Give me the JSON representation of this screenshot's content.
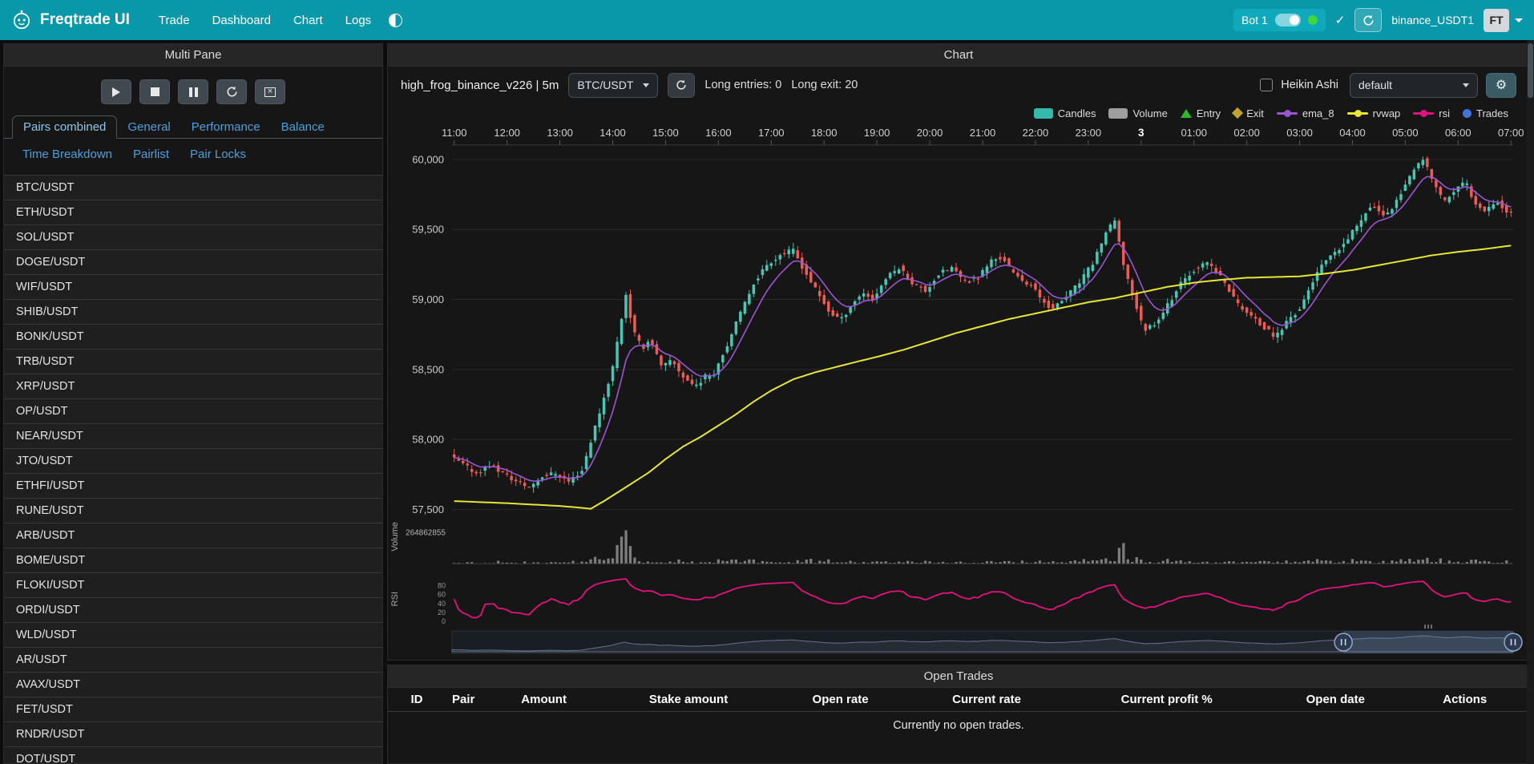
{
  "navbar": {
    "brand": "Freqtrade UI",
    "items": [
      {
        "label": "Trade"
      },
      {
        "label": "Dashboard"
      },
      {
        "label": "Chart"
      },
      {
        "label": "Logs"
      }
    ],
    "bot_label": "Bot 1",
    "check": "✓",
    "bot_id": "binance_USDT1",
    "avatar": "FT",
    "navbar_color": "#0998a9"
  },
  "left_panel": {
    "title": "Multi Pane",
    "tabs_primary": [
      "Pairs combined",
      "General",
      "Performance",
      "Balance"
    ],
    "tabs_secondary": [
      "Time Breakdown",
      "Pairlist",
      "Pair Locks"
    ],
    "active_tab": "Pairs combined",
    "pairs": [
      "BTC/USDT",
      "ETH/USDT",
      "SOL/USDT",
      "DOGE/USDT",
      "WIF/USDT",
      "SHIB/USDT",
      "BONK/USDT",
      "TRB/USDT",
      "XRP/USDT",
      "OP/USDT",
      "NEAR/USDT",
      "JTO/USDT",
      "ETHFI/USDT",
      "RUNE/USDT",
      "ARB/USDT",
      "BOME/USDT",
      "FLOKI/USDT",
      "ORDI/USDT",
      "WLD/USDT",
      "AR/USDT",
      "AVAX/USDT",
      "FET/USDT",
      "RNDR/USDT",
      "DOT/USDT"
    ]
  },
  "chart_panel": {
    "title": "Chart",
    "strategy_title": "high_frog_binance_v226 | 5m",
    "pair_select": "BTC/USDT",
    "long_entries": "Long entries: 0",
    "long_exit": "Long exit: 20",
    "heikin_label": "Heikin Ashi",
    "plot_select": "default",
    "legend": [
      {
        "label": "Candles",
        "type": "rect",
        "color": "#35b9aa"
      },
      {
        "label": "Volume",
        "type": "rect",
        "color": "#9e9e9e"
      },
      {
        "label": "Entry",
        "type": "triangle",
        "color": "#2db52d"
      },
      {
        "label": "Exit",
        "type": "diamond",
        "color": "#c0a42c"
      },
      {
        "label": "ema_8",
        "type": "line",
        "color": "#9b55d3"
      },
      {
        "label": "rvwap",
        "type": "line",
        "color": "#e6e636"
      },
      {
        "label": "rsi",
        "type": "line",
        "color": "#e3127e"
      },
      {
        "label": "Trades",
        "type": "circle",
        "color": "#4272db"
      }
    ]
  },
  "open_trades": {
    "title": "Open Trades",
    "columns": [
      "ID",
      "Pair",
      "Amount",
      "Stake amount",
      "Open rate",
      "Current rate",
      "Current profit %",
      "Open date",
      "Actions"
    ],
    "empty_text": "Currently no open trades."
  },
  "chart_data": {
    "type": "candlestick",
    "pair": "BTC/USDT",
    "interval": "5m",
    "candle_count": 241,
    "x_labels": [
      "11:00",
      "12:00",
      "13:00",
      "14:00",
      "15:00",
      "16:00",
      "17:00",
      "18:00",
      "19:00",
      "20:00",
      "21:00",
      "22:00",
      "23:00",
      "3",
      "01:00",
      "02:00",
      "03:00",
      "04:00",
      "05:00",
      "06:00",
      "07:00"
    ],
    "y_ticks": [
      57500,
      58000,
      58500,
      59000,
      59500,
      60000
    ],
    "volume_axis_label": "264862855",
    "rsi_ticks": [
      80,
      60,
      40,
      20,
      0
    ],
    "zoom": {
      "start": 84,
      "end": 100
    },
    "colors": {
      "up": "#45c8b6",
      "down": "#ea5c56",
      "ema_8": "#9b55d3",
      "rvwap": "#e6e636",
      "rsi": "#e3127e",
      "volume": "#8f8f8f"
    },
    "price_anchors": [
      [
        0,
        57880
      ],
      [
        15,
        57820
      ],
      [
        30,
        57760
      ],
      [
        45,
        57820
      ],
      [
        60,
        57760
      ],
      [
        75,
        57700
      ],
      [
        90,
        57660
      ],
      [
        105,
        57740
      ],
      [
        120,
        57760
      ],
      [
        135,
        57700
      ],
      [
        150,
        57780
      ],
      [
        163,
        58050
      ],
      [
        175,
        58300
      ],
      [
        185,
        58520
      ],
      [
        193,
        58800
      ],
      [
        200,
        59040
      ],
      [
        208,
        58780
      ],
      [
        218,
        58650
      ],
      [
        228,
        58720
      ],
      [
        240,
        58520
      ],
      [
        252,
        58560
      ],
      [
        265,
        58450
      ],
      [
        278,
        58380
      ],
      [
        290,
        58450
      ],
      [
        300,
        58480
      ],
      [
        315,
        58680
      ],
      [
        330,
        58900
      ],
      [
        345,
        59120
      ],
      [
        360,
        59250
      ],
      [
        375,
        59320
      ],
      [
        390,
        59350
      ],
      [
        405,
        59180
      ],
      [
        420,
        59020
      ],
      [
        432,
        58900
      ],
      [
        445,
        58860
      ],
      [
        458,
        58980
      ],
      [
        470,
        59050
      ],
      [
        480,
        59000
      ],
      [
        495,
        59150
      ],
      [
        510,
        59230
      ],
      [
        525,
        59120
      ],
      [
        540,
        59060
      ],
      [
        555,
        59180
      ],
      [
        570,
        59230
      ],
      [
        585,
        59120
      ],
      [
        600,
        59160
      ],
      [
        615,
        59280
      ],
      [
        628,
        59300
      ],
      [
        640,
        59180
      ],
      [
        660,
        59100
      ],
      [
        672,
        59000
      ],
      [
        685,
        58930
      ],
      [
        700,
        59020
      ],
      [
        715,
        59120
      ],
      [
        730,
        59260
      ],
      [
        745,
        59480
      ],
      [
        755,
        59560
      ],
      [
        763,
        59300
      ],
      [
        772,
        59100
      ],
      [
        788,
        58780
      ],
      [
        802,
        58840
      ],
      [
        818,
        58990
      ],
      [
        833,
        59140
      ],
      [
        848,
        59230
      ],
      [
        862,
        59260
      ],
      [
        878,
        59140
      ],
      [
        893,
        58980
      ],
      [
        908,
        58890
      ],
      [
        922,
        58810
      ],
      [
        938,
        58730
      ],
      [
        952,
        58860
      ],
      [
        965,
        58930
      ],
      [
        978,
        59110
      ],
      [
        992,
        59260
      ],
      [
        1006,
        59330
      ],
      [
        1020,
        59430
      ],
      [
        1033,
        59560
      ],
      [
        1046,
        59680
      ],
      [
        1058,
        59600
      ],
      [
        1070,
        59650
      ],
      [
        1083,
        59800
      ],
      [
        1096,
        59930
      ],
      [
        1106,
        60000
      ],
      [
        1116,
        59850
      ],
      [
        1128,
        59700
      ],
      [
        1141,
        59770
      ],
      [
        1153,
        59850
      ],
      [
        1163,
        59700
      ],
      [
        1176,
        59640
      ],
      [
        1188,
        59710
      ],
      [
        1200,
        59620
      ]
    ],
    "rvwap_anchors": [
      [
        0,
        57560
      ],
      [
        60,
        57545
      ],
      [
        120,
        57525
      ],
      [
        140,
        57515
      ],
      [
        155,
        57505
      ],
      [
        170,
        57560
      ],
      [
        185,
        57620
      ],
      [
        200,
        57680
      ],
      [
        220,
        57760
      ],
      [
        240,
        57860
      ],
      [
        260,
        57950
      ],
      [
        280,
        58020
      ],
      [
        300,
        58100
      ],
      [
        320,
        58180
      ],
      [
        340,
        58270
      ],
      [
        360,
        58350
      ],
      [
        385,
        58430
      ],
      [
        410,
        58480
      ],
      [
        435,
        58520
      ],
      [
        460,
        58560
      ],
      [
        480,
        58590
      ],
      [
        510,
        58640
      ],
      [
        540,
        58700
      ],
      [
        570,
        58760
      ],
      [
        600,
        58810
      ],
      [
        630,
        58860
      ],
      [
        660,
        58900
      ],
      [
        690,
        58940
      ],
      [
        720,
        58980
      ],
      [
        750,
        59010
      ],
      [
        780,
        59050
      ],
      [
        810,
        59090
      ],
      [
        840,
        59120
      ],
      [
        870,
        59140
      ],
      [
        900,
        59155
      ],
      [
        930,
        59160
      ],
      [
        960,
        59165
      ],
      [
        990,
        59185
      ],
      [
        1020,
        59210
      ],
      [
        1050,
        59245
      ],
      [
        1080,
        59280
      ],
      [
        1110,
        59315
      ],
      [
        1140,
        59340
      ],
      [
        1170,
        59360
      ],
      [
        1200,
        59385
      ]
    ]
  }
}
